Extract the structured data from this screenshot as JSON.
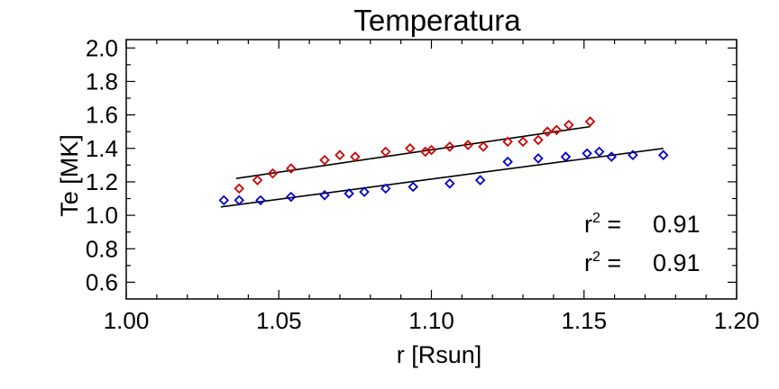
{
  "chart_data": {
    "type": "scatter",
    "title": "Temperatura",
    "xlabel": "r [Rsun]",
    "ylabel": "Te [MK]",
    "xlim": [
      1.0,
      1.2
    ],
    "ylim": [
      0.5,
      2.05
    ],
    "x_ticks": [
      "1.00",
      "1.05",
      "1.10",
      "1.15",
      "1.20"
    ],
    "y_ticks": [
      "0.6",
      "0.8",
      "1.0",
      "1.2",
      "1.4",
      "1.6",
      "1.8",
      "2.0"
    ],
    "grid": false,
    "marker": "diamond",
    "series": [
      {
        "color": "#cc0000",
        "x": [
          1.037,
          1.043,
          1.048,
          1.054,
          1.065,
          1.07,
          1.075,
          1.085,
          1.093,
          1.098,
          1.1,
          1.106,
          1.112,
          1.117,
          1.125,
          1.13,
          1.135,
          1.138,
          1.141,
          1.145,
          1.152
        ],
        "y": [
          1.16,
          1.21,
          1.25,
          1.28,
          1.33,
          1.36,
          1.35,
          1.38,
          1.4,
          1.38,
          1.39,
          1.41,
          1.42,
          1.41,
          1.44,
          1.44,
          1.45,
          1.5,
          1.51,
          1.54,
          1.56
        ],
        "fit": {
          "x": [
            1.036,
            1.152
          ],
          "y": [
            1.22,
            1.53
          ]
        }
      },
      {
        "color": "#0000cc",
        "x": [
          1.032,
          1.037,
          1.044,
          1.054,
          1.065,
          1.073,
          1.078,
          1.085,
          1.094,
          1.106,
          1.116,
          1.125,
          1.135,
          1.144,
          1.151,
          1.155,
          1.159,
          1.166,
          1.176
        ],
        "y": [
          1.09,
          1.09,
          1.09,
          1.11,
          1.12,
          1.13,
          1.14,
          1.16,
          1.17,
          1.19,
          1.21,
          1.32,
          1.34,
          1.35,
          1.37,
          1.38,
          1.35,
          1.36,
          1.36
        ],
        "fit": {
          "x": [
            1.031,
            1.176
          ],
          "y": [
            1.05,
            1.4
          ]
        }
      }
    ],
    "annotations": [
      {
        "label": "r",
        "sup": "2",
        "eq": " =",
        "value": "0.91",
        "color": "#0000cc"
      },
      {
        "label": "r",
        "sup": "2",
        "eq": " =",
        "value": "0.91",
        "color": "#cc0000"
      }
    ]
  }
}
